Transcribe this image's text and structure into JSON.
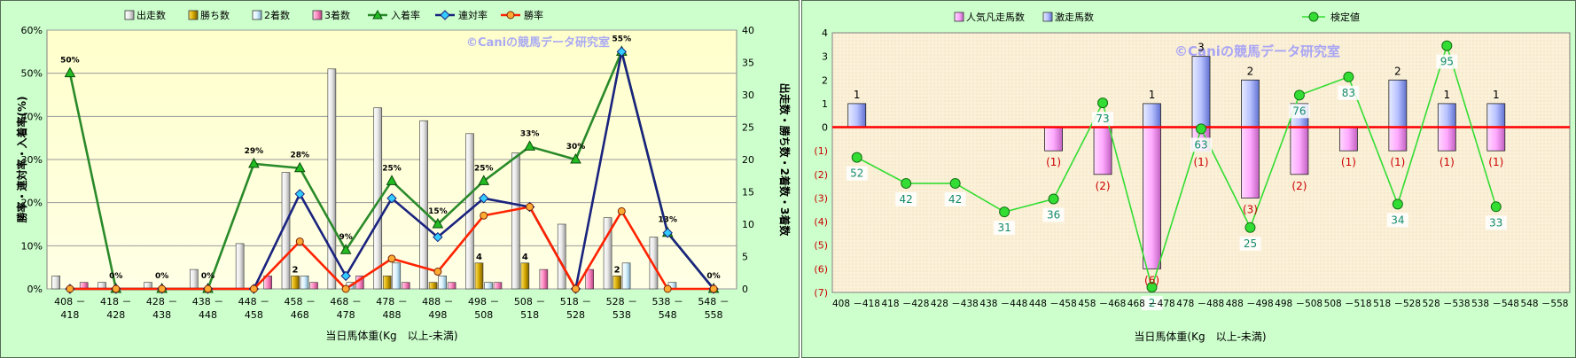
{
  "chart_data": [
    {
      "type": "bar",
      "categories": [
        "408－418",
        "418－428",
        "428－438",
        "438－448",
        "448－458",
        "458－468",
        "468－478",
        "478－488",
        "488－498",
        "498－508",
        "508－518",
        "518－528",
        "528－538",
        "538－548",
        "548－558"
      ],
      "series": [
        {
          "name": "出走数",
          "type": "bar",
          "axis": "right",
          "color": "#f2f2f2",
          "values": [
            2,
            1,
            1,
            3,
            7,
            18,
            34,
            28,
            26,
            24,
            21,
            10,
            11,
            8,
            0
          ]
        },
        {
          "name": "勝ち数",
          "type": "bar",
          "axis": "right",
          "color": "#ccaa00",
          "values": [
            0,
            0,
            0,
            0,
            0,
            2,
            0,
            2,
            1,
            4,
            4,
            0,
            2,
            0,
            0
          ]
        },
        {
          "name": "2着数",
          "type": "bar",
          "axis": "right",
          "color": "#d9f2ff",
          "values": [
            0,
            0,
            0,
            0,
            0,
            2,
            1,
            4,
            2,
            1,
            0,
            0,
            4,
            1,
            0
          ]
        },
        {
          "name": "3着数",
          "type": "bar",
          "axis": "right",
          "color": "#ff99cc",
          "values": [
            1,
            0,
            0,
            0,
            2,
            1,
            2,
            1,
            1,
            1,
            3,
            3,
            0,
            0,
            0
          ]
        },
        {
          "name": "入着率",
          "type": "line",
          "axis": "left",
          "color": "#2a8a2a",
          "values": [
            50,
            0,
            0,
            0,
            29,
            28,
            9,
            25,
            15,
            25,
            33,
            30,
            55,
            13,
            0
          ]
        },
        {
          "name": "連対率",
          "type": "line",
          "axis": "left",
          "color": "#1a237e",
          "values": [
            0,
            0,
            0,
            0,
            0,
            22,
            3,
            21,
            12,
            21,
            19,
            0,
            55,
            13,
            0
          ]
        },
        {
          "name": "勝率",
          "type": "line",
          "axis": "left",
          "color": "#ff2200",
          "values": [
            0,
            0,
            0,
            0,
            0,
            11,
            0,
            7,
            4,
            17,
            19,
            0,
            18,
            0,
            0
          ]
        }
      ],
      "bar_labels": [
        {
          "series": "勝ち数",
          "index": 5,
          "text": "2"
        },
        {
          "series": "勝ち数",
          "index": 9,
          "text": "4"
        },
        {
          "series": "勝ち数",
          "index": 10,
          "text": "4"
        },
        {
          "series": "勝ち数",
          "index": 12,
          "text": "2"
        }
      ],
      "line_labels": [
        {
          "index": 0,
          "text": "50%"
        },
        {
          "index": 1,
          "text": "0%"
        },
        {
          "index": 2,
          "text": "0%"
        },
        {
          "index": 3,
          "text": "0%"
        },
        {
          "index": 4,
          "text": "29%"
        },
        {
          "index": 5,
          "text": "28%"
        },
        {
          "index": 6,
          "text": "9%"
        },
        {
          "index": 7,
          "text": "25%"
        },
        {
          "index": 8,
          "text": "15%"
        },
        {
          "index": 9,
          "text": "25%"
        },
        {
          "index": 10,
          "text": "33%"
        },
        {
          "index": 11,
          "text": "30%"
        },
        {
          "index": 12,
          "text": "55%"
        },
        {
          "index": 13,
          "text": "13%"
        },
        {
          "index": 14,
          "text": "0%"
        }
      ],
      "xlabel": "当日馬体重(Kg　以上-未満)",
      "ylabel_left": "勝率・連対率・入着率(%)",
      "ylabel_right": "出走数・勝ち数・2着数・3着数",
      "ylim_left": [
        0,
        60
      ],
      "ylim_right": [
        0,
        40
      ],
      "yticks_left": [
        "0%",
        "10%",
        "20%",
        "30%",
        "40%",
        "50%",
        "60%"
      ],
      "yticks_right": [
        "0",
        "5",
        "10",
        "15",
        "20",
        "25",
        "30",
        "35",
        "40"
      ],
      "legend_position": "top",
      "watermark": "©Caniの競馬データ研究室",
      "grid": "horizontal"
    },
    {
      "type": "bar",
      "categories": [
        "408－418",
        "418－428",
        "428－438",
        "438－448",
        "448－458",
        "458－468",
        "468－478",
        "478－488",
        "488－498",
        "498－508",
        "508－518",
        "518－528",
        "528－538",
        "538－548",
        "548－558"
      ],
      "series": [
        {
          "name": "人気凡走馬数",
          "type": "bar",
          "color": "#ffb3ff",
          "values": [
            0,
            0,
            0,
            0,
            -1,
            -2,
            -6,
            -1,
            -3,
            -2,
            -1,
            -1,
            -1,
            -1,
            0
          ]
        },
        {
          "name": "激走馬数",
          "type": "bar",
          "color": "#c0c8ff",
          "values": [
            1,
            0,
            0,
            0,
            0,
            0,
            1,
            3,
            2,
            1,
            0,
            2,
            1,
            1,
            0
          ]
        },
        {
          "name": "検定値",
          "type": "line",
          "color": "#33dd33",
          "values": [
            52,
            42,
            42,
            31,
            36,
            73,
            2,
            63,
            25,
            76,
            83,
            34,
            95,
            33,
            null
          ]
        }
      ],
      "pos_labels": [
        "1",
        "",
        "",
        "",
        "",
        "",
        "1",
        "3",
        "2",
        "",
        "",
        "2",
        "1",
        "1",
        ""
      ],
      "neg_labels": [
        "",
        "",
        "",
        "",
        "(1)",
        "(2)",
        "(6)",
        "(1)",
        "(3)",
        "(2)",
        "(1)",
        "(1)",
        "(1)",
        "(1)",
        ""
      ],
      "xlabel": "当日馬体重(Kg　以上-未満)",
      "ylim": [
        -7,
        4
      ],
      "yticks": [
        "(7)",
        "(6)",
        "(5)",
        "(4)",
        "(3)",
        "(2)",
        "(1)",
        "0",
        "1",
        "2",
        "3",
        "4"
      ],
      "line_ylim": [
        0,
        100
      ],
      "legend_position": "top",
      "watermark": "©Caniの競馬データ研究室",
      "zero_line_color": "#ff0000"
    }
  ]
}
